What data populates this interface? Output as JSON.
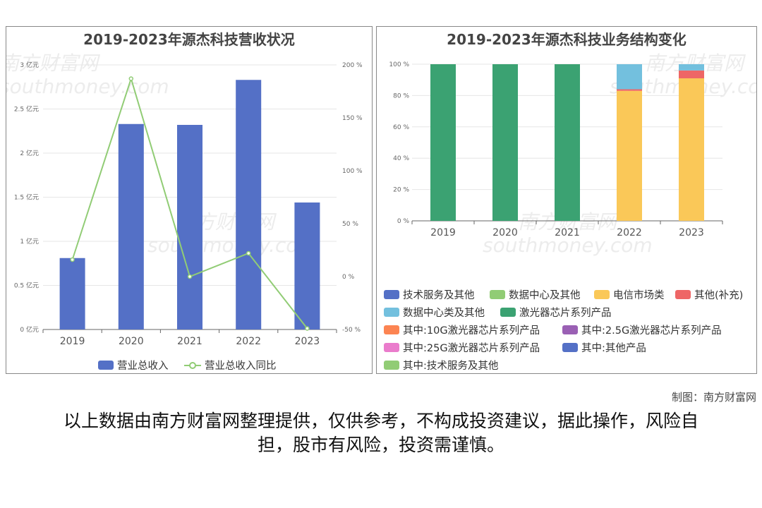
{
  "watermark": {
    "cn": "南方财富网",
    "en": "southmoney.com"
  },
  "credit": "制图：南方财富网",
  "disclaimer": "以上数据由南方财富网整理提供，仅供参考，不构成投资建议，据此操作，风险自担，股市有风险，投资需谨慎。",
  "chart_data": [
    {
      "type": "bar",
      "title": "2019-2023年源杰科技营收状况",
      "categories": [
        "2019",
        "2020",
        "2021",
        "2022",
        "2023"
      ],
      "y_ticks": [
        "0 亿元",
        "0.5 亿元",
        "1 亿元",
        "1.5 亿元",
        "2 亿元",
        "2.5 亿元",
        "3 亿元"
      ],
      "y2_ticks": [
        "-50 %",
        "0 %",
        "50 %",
        "100 %",
        "150 %",
        "200 %"
      ],
      "ylim": [
        0,
        3
      ],
      "y2lim": [
        -50,
        200
      ],
      "series": [
        {
          "name": "营业总收入",
          "type": "bar",
          "color": "#5470c6",
          "values": [
            0.81,
            2.33,
            2.32,
            2.83,
            1.44
          ]
        },
        {
          "name": "营业总收入同比",
          "type": "line",
          "color": "#91cc75",
          "values": [
            16,
            187,
            0,
            22,
            -49
          ]
        }
      ]
    },
    {
      "type": "bar",
      "stacked": true,
      "title": "2019-2023年源杰科技业务结构变化",
      "categories": [
        "2019",
        "2020",
        "2021",
        "2022",
        "2023"
      ],
      "y_ticks": [
        "0 %",
        "20 %",
        "40 %",
        "60 %",
        "80 %",
        "100 %"
      ],
      "ylim": [
        0,
        100
      ],
      "series": [
        {
          "name": "技术服务及其他",
          "color": "#5470c6",
          "values": [
            0,
            0,
            0,
            0,
            0
          ]
        },
        {
          "name": "数据中心及其他",
          "color": "#91cc75",
          "values": [
            0,
            0,
            0,
            0,
            0
          ]
        },
        {
          "name": "电信市场类",
          "color": "#fac858",
          "values": [
            0,
            0,
            0,
            83,
            91
          ]
        },
        {
          "name": "其他(补充)",
          "color": "#ee6666",
          "values": [
            0,
            0,
            0,
            1,
            5
          ]
        },
        {
          "name": "数据中心类及其他",
          "color": "#73c0de",
          "values": [
            0,
            0,
            0,
            16,
            4
          ]
        },
        {
          "name": "激光器芯片系列产品",
          "color": "#3ba272",
          "values": [
            100,
            100,
            100,
            0,
            0
          ]
        },
        {
          "name": "其中:10G激光器芯片系列产品",
          "color": "#fc8452",
          "values": [
            0,
            0,
            0,
            0,
            0
          ]
        },
        {
          "name": "其中:2.5G激光器芯片系列产品",
          "color": "#9a60b4",
          "values": [
            0,
            0,
            0,
            0,
            0
          ]
        },
        {
          "name": "其中:25G激光器芯片系列产品",
          "color": "#ea7ccc",
          "values": [
            0,
            0,
            0,
            0,
            0
          ]
        },
        {
          "name": "其中:其他产品",
          "color": "#5470c6",
          "values": [
            0,
            0,
            0,
            0,
            0
          ]
        },
        {
          "name": "其中:技术服务及其他",
          "color": "#91cc75",
          "values": [
            0,
            0,
            0,
            0,
            0
          ]
        }
      ]
    }
  ]
}
